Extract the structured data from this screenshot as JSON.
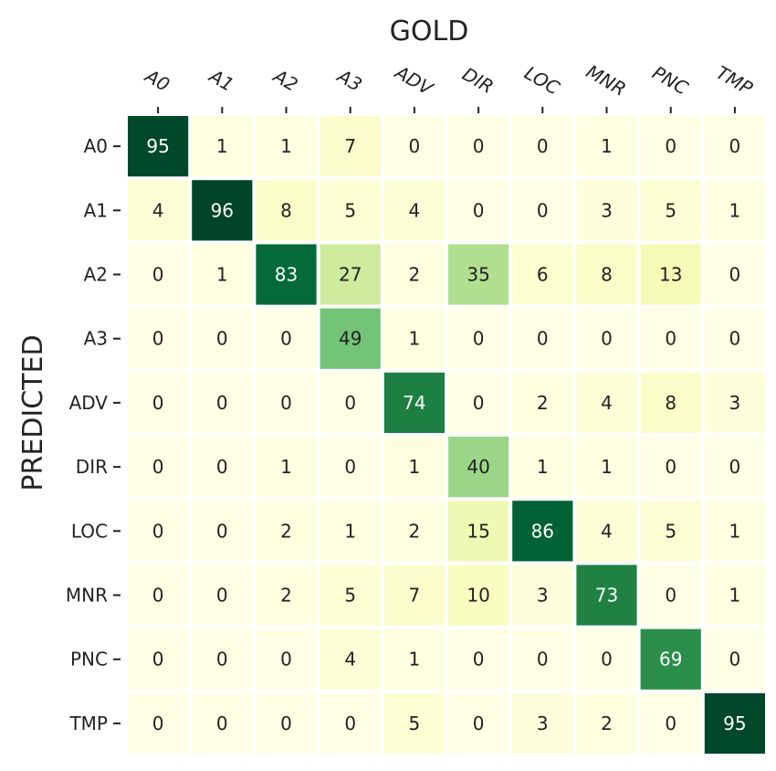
{
  "chart_data": {
    "type": "heatmap",
    "xlabel": "GOLD",
    "ylabel": "PREDICTED",
    "x_categories": [
      "A0",
      "A1",
      "A2",
      "A3",
      "ADV",
      "DIR",
      "LOC",
      "MNR",
      "PNC",
      "TMP"
    ],
    "y_categories": [
      "A0",
      "A1",
      "A2",
      "A3",
      "ADV",
      "DIR",
      "LOC",
      "MNR",
      "PNC",
      "TMP"
    ],
    "values": [
      [
        95,
        1,
        1,
        7,
        0,
        0,
        0,
        1,
        0,
        0
      ],
      [
        4,
        96,
        8,
        5,
        4,
        0,
        0,
        3,
        5,
        1
      ],
      [
        0,
        1,
        83,
        27,
        2,
        35,
        6,
        8,
        13,
        0
      ],
      [
        0,
        0,
        0,
        49,
        1,
        0,
        0,
        0,
        0,
        0
      ],
      [
        0,
        0,
        0,
        0,
        74,
        0,
        2,
        4,
        8,
        3
      ],
      [
        0,
        0,
        1,
        0,
        1,
        40,
        1,
        1,
        0,
        0
      ],
      [
        0,
        0,
        2,
        1,
        2,
        15,
        86,
        4,
        5,
        1
      ],
      [
        0,
        0,
        2,
        5,
        7,
        10,
        3,
        73,
        0,
        1
      ],
      [
        0,
        0,
        0,
        4,
        1,
        0,
        0,
        0,
        69,
        0
      ],
      [
        0,
        0,
        0,
        0,
        5,
        0,
        3,
        2,
        0,
        95
      ]
    ],
    "value_range": [
      0,
      96
    ],
    "colormap": "YlGn",
    "x_axis_position": "top",
    "legend": "none",
    "grid": false
  }
}
